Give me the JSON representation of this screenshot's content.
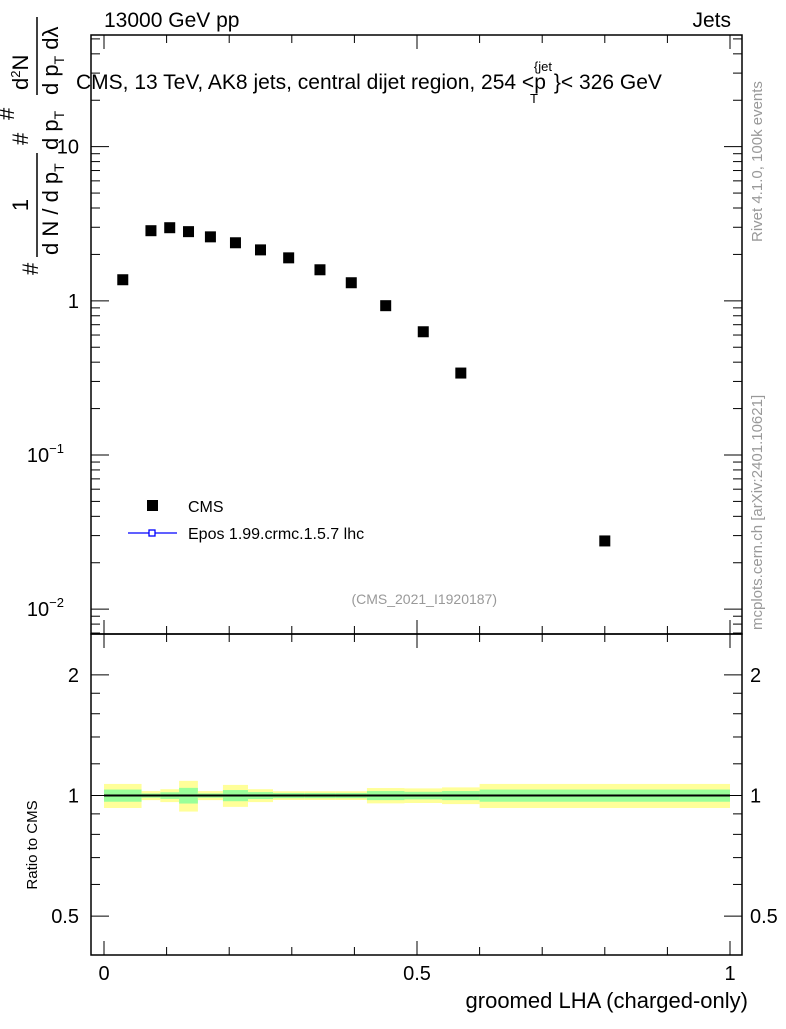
{
  "header": {
    "left": "13000 GeV pp",
    "right": "Jets"
  },
  "side_labels": {
    "top": "Rivet 4.1.0,  100k events",
    "bottom": "mcplots.cern.ch [arXiv:2401.10621]"
  },
  "colors": {
    "data": "#000000",
    "mc": "#0000ff",
    "band_outer": "#ffff99",
    "band_inner": "#99ff99",
    "watermark": "#999999"
  },
  "chart_data": [
    {
      "type": "scatter",
      "title": "CMS, 13 TeV, AK8 jets, central dijet region, 254 <p",
      "title_sup": "{jet",
      "title_sub": "T",
      "title_end": "}< 326 GeV",
      "ylabel_parts": {
        "hash1": "#",
        "num1": "1",
        "den1": "d N / d p",
        "den1_sub": "T",
        "hash2": "#",
        "hash3": "#",
        "den2": "d p",
        "den2_sub": "T",
        "num3": "d",
        "num3_sup": "2",
        "num3_end": "N",
        "den3": "d p",
        "den3_sub": "T",
        "den3_end": " dλ"
      },
      "yscale": "log",
      "ylim": [
        0.0069,
        53
      ],
      "xlim": [
        -0.02,
        1.02
      ],
      "yticks": [
        {
          "v": 0.01,
          "label": "10",
          "exp": "−2"
        },
        {
          "v": 0.1,
          "label": "10",
          "exp": "−1"
        },
        {
          "v": 1,
          "label": "1",
          "exp": ""
        },
        {
          "v": 10,
          "label": "10",
          "exp": ""
        }
      ],
      "series": [
        {
          "name": "CMS",
          "x": [
            0.03,
            0.075,
            0.105,
            0.135,
            0.17,
            0.21,
            0.25,
            0.295,
            0.345,
            0.395,
            0.45,
            0.51,
            0.57,
            0.8
          ],
          "y": [
            1.37,
            2.85,
            2.98,
            2.81,
            2.6,
            2.38,
            2.14,
            1.9,
            1.59,
            1.31,
            0.93,
            0.63,
            0.34,
            0.0277
          ]
        },
        {
          "name": "Epos 1.99.crmc.1.5.7 lhc",
          "x": [],
          "y": []
        }
      ],
      "legend": "top-left",
      "watermark": "(CMS_2021_I1920187)"
    },
    {
      "type": "area",
      "ylabel": "Ratio to CMS",
      "xlabel": "groomed LHA (charged-only)",
      "yscale": "log",
      "ylim": [
        0.4,
        2.53
      ],
      "yticks": [
        {
          "v": 0.5,
          "label": "0.5"
        },
        {
          "v": 1,
          "label": "1"
        },
        {
          "v": 2,
          "label": "2"
        }
      ],
      "xticks": [
        {
          "v": 0,
          "label": "0"
        },
        {
          "v": 0.5,
          "label": "0.5"
        },
        {
          "v": 1,
          "label": "1"
        }
      ],
      "bin_edges": [
        0,
        0.06,
        0.09,
        0.12,
        0.15,
        0.19,
        0.23,
        0.27,
        0.32,
        0.37,
        0.42,
        0.48,
        0.54,
        0.6,
        1.0
      ],
      "band_outer": [
        0.069,
        0.026,
        0.037,
        0.088,
        0.026,
        0.063,
        0.037,
        0.025,
        0.025,
        0.025,
        0.044,
        0.042,
        0.048,
        0.069
      ],
      "band_inner": [
        0.035,
        0.012,
        0.019,
        0.045,
        0.012,
        0.032,
        0.02,
        0.015,
        0.015,
        0.015,
        0.026,
        0.022,
        0.026,
        0.035
      ],
      "reference": 1
    }
  ]
}
